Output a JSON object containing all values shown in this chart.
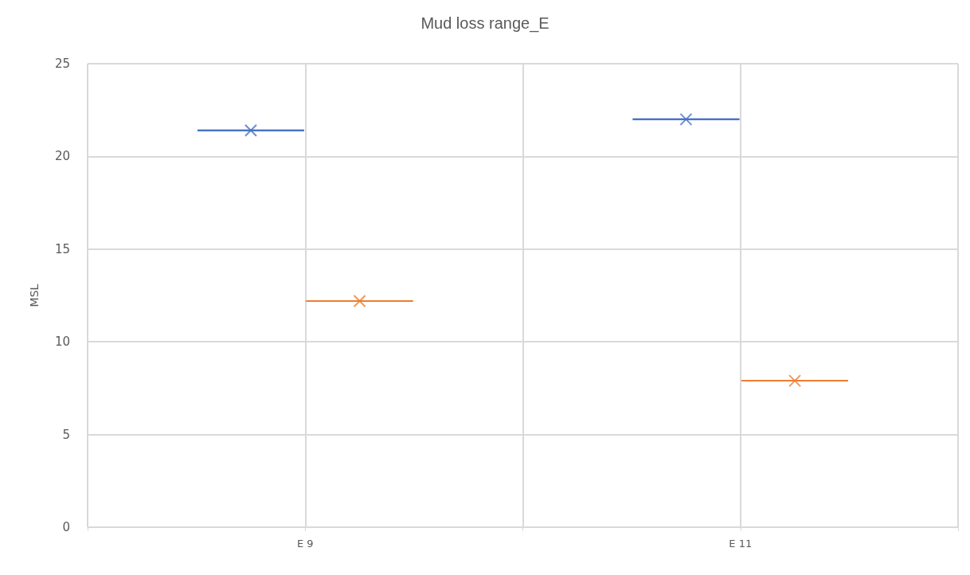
{
  "chart_data": {
    "type": "box",
    "title": "Mud loss range_E",
    "ylabel": "MSL",
    "categories": [
      "E 9",
      "E 11"
    ],
    "series": [
      {
        "color": "#4472c4",
        "boxes": [
          {
            "low": 21.4,
            "q1": 21.4,
            "median": 21.4,
            "q3": 21.4,
            "high": 21.4,
            "mean": 21.4
          },
          {
            "low": 22.0,
            "q1": 22.0,
            "median": 22.0,
            "q3": 22.0,
            "high": 22.0,
            "mean": 22.0
          }
        ]
      },
      {
        "color": "#ed7d31",
        "boxes": [
          {
            "low": 12.2,
            "q1": 12.2,
            "median": 12.2,
            "q3": 12.2,
            "high": 12.2,
            "mean": 12.2
          },
          {
            "low": 7.9,
            "q1": 7.9,
            "median": 7.9,
            "q3": 7.9,
            "high": 7.9,
            "mean": 7.9
          }
        ]
      }
    ],
    "ylim": [
      0,
      25
    ],
    "yticks": [
      0,
      5,
      10,
      15,
      20,
      25
    ],
    "grid": true,
    "marker": "cross"
  }
}
